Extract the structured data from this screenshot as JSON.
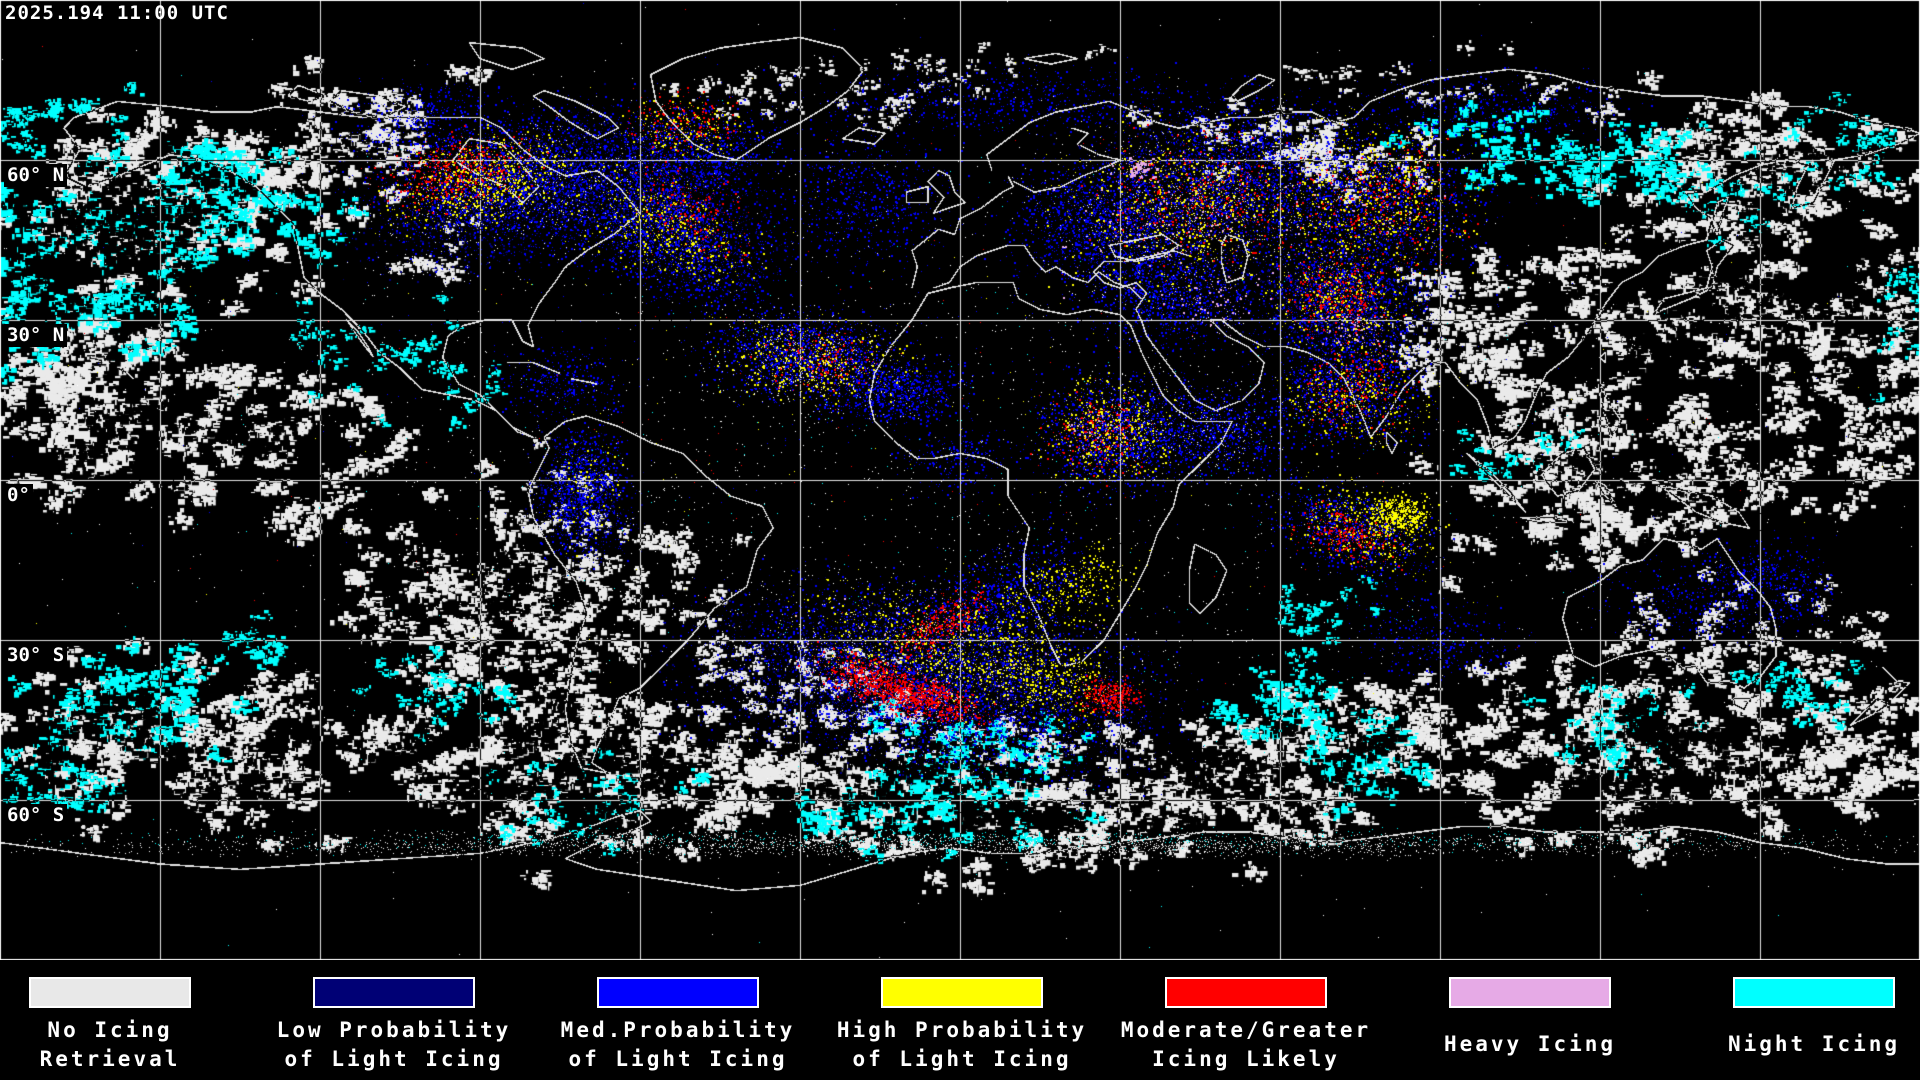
{
  "header": {
    "timestamp": "2025.194 11:00 UTC"
  },
  "map": {
    "grid_spacing_degrees": 30,
    "latitude_labels": [
      {
        "text": "60° N"
      },
      {
        "text": "30° N"
      },
      {
        "text": "0°"
      },
      {
        "text": "30° S"
      },
      {
        "text": "60° S"
      }
    ]
  },
  "legend": {
    "items": [
      {
        "name": "no-icing-retrieval",
        "color": "#e8e8e8",
        "label_line1": "No Icing",
        "label_line2": "Retrieval"
      },
      {
        "name": "low-prob-light-icing",
        "color": "#000075",
        "label_line1": "Low Probability",
        "label_line2": "of Light Icing"
      },
      {
        "name": "med-prob-light-icing",
        "color": "#0000ff",
        "label_line1": "Med.Probability",
        "label_line2": "of Light Icing"
      },
      {
        "name": "high-prob-light-icing",
        "color": "#ffff00",
        "label_line1": "High Probability",
        "label_line2": "of Light Icing"
      },
      {
        "name": "moderate-greater-icing",
        "color": "#ff0000",
        "label_line1": "Moderate/Greater",
        "label_line2": "Icing Likely"
      },
      {
        "name": "heavy-icing",
        "color": "#e6aae6",
        "label_line1": "Heavy Icing",
        "label_line2": ""
      },
      {
        "name": "night-icing",
        "color": "#00ffff",
        "label_line1": "Night Icing",
        "label_line2": ""
      }
    ]
  }
}
